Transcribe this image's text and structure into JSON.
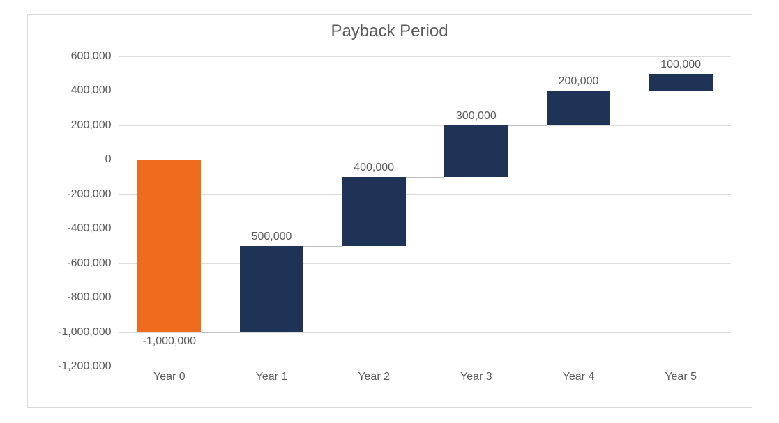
{
  "chart": {
    "type": "waterfall",
    "title": "Payback Period",
    "title_fontsize": 24,
    "title_color": "#5a5a5a",
    "background_color": "#ffffff",
    "border_color": "#d9d9d9",
    "grid_color": "#dcdcdc",
    "axis_label_color": "#5a5a5a",
    "axis_label_fontsize": 16,
    "data_label_color": "#5a5a5a",
    "data_label_fontsize": 16,
    "ylim": [
      -1200000,
      600000
    ],
    "ytick_step": 200000,
    "ytick_labels": [
      "-1,200,000",
      "-1,000,000",
      "-800,000",
      "-600,000",
      "-400,000",
      "-200,000",
      "0",
      "200,000",
      "400,000",
      "600,000"
    ],
    "categories": [
      "Year 0",
      "Year 1",
      "Year 2",
      "Year 3",
      "Year 4",
      "Year 5"
    ],
    "bars": [
      {
        "label": "-1,000,000",
        "bottom": -1000000,
        "top": 0,
        "color": "#ef6c1f",
        "label_at": "bottom"
      },
      {
        "label": "500,000",
        "bottom": -1000000,
        "top": -500000,
        "color": "#1e3355",
        "label_at": "top"
      },
      {
        "label": "400,000",
        "bottom": -500000,
        "top": -100000,
        "color": "#1e3355",
        "label_at": "top"
      },
      {
        "label": "300,000",
        "bottom": -100000,
        "top": 200000,
        "color": "#1e3355",
        "label_at": "top"
      },
      {
        "label": "200,000",
        "bottom": 200000,
        "top": 400000,
        "color": "#1e3355",
        "label_at": "top"
      },
      {
        "label": "100,000",
        "bottom": 400000,
        "top": 500000,
        "color": "#1e3355",
        "label_at": "top"
      }
    ],
    "bar_width_ratio": 0.62,
    "connector_color": "#bfbfbf"
  }
}
